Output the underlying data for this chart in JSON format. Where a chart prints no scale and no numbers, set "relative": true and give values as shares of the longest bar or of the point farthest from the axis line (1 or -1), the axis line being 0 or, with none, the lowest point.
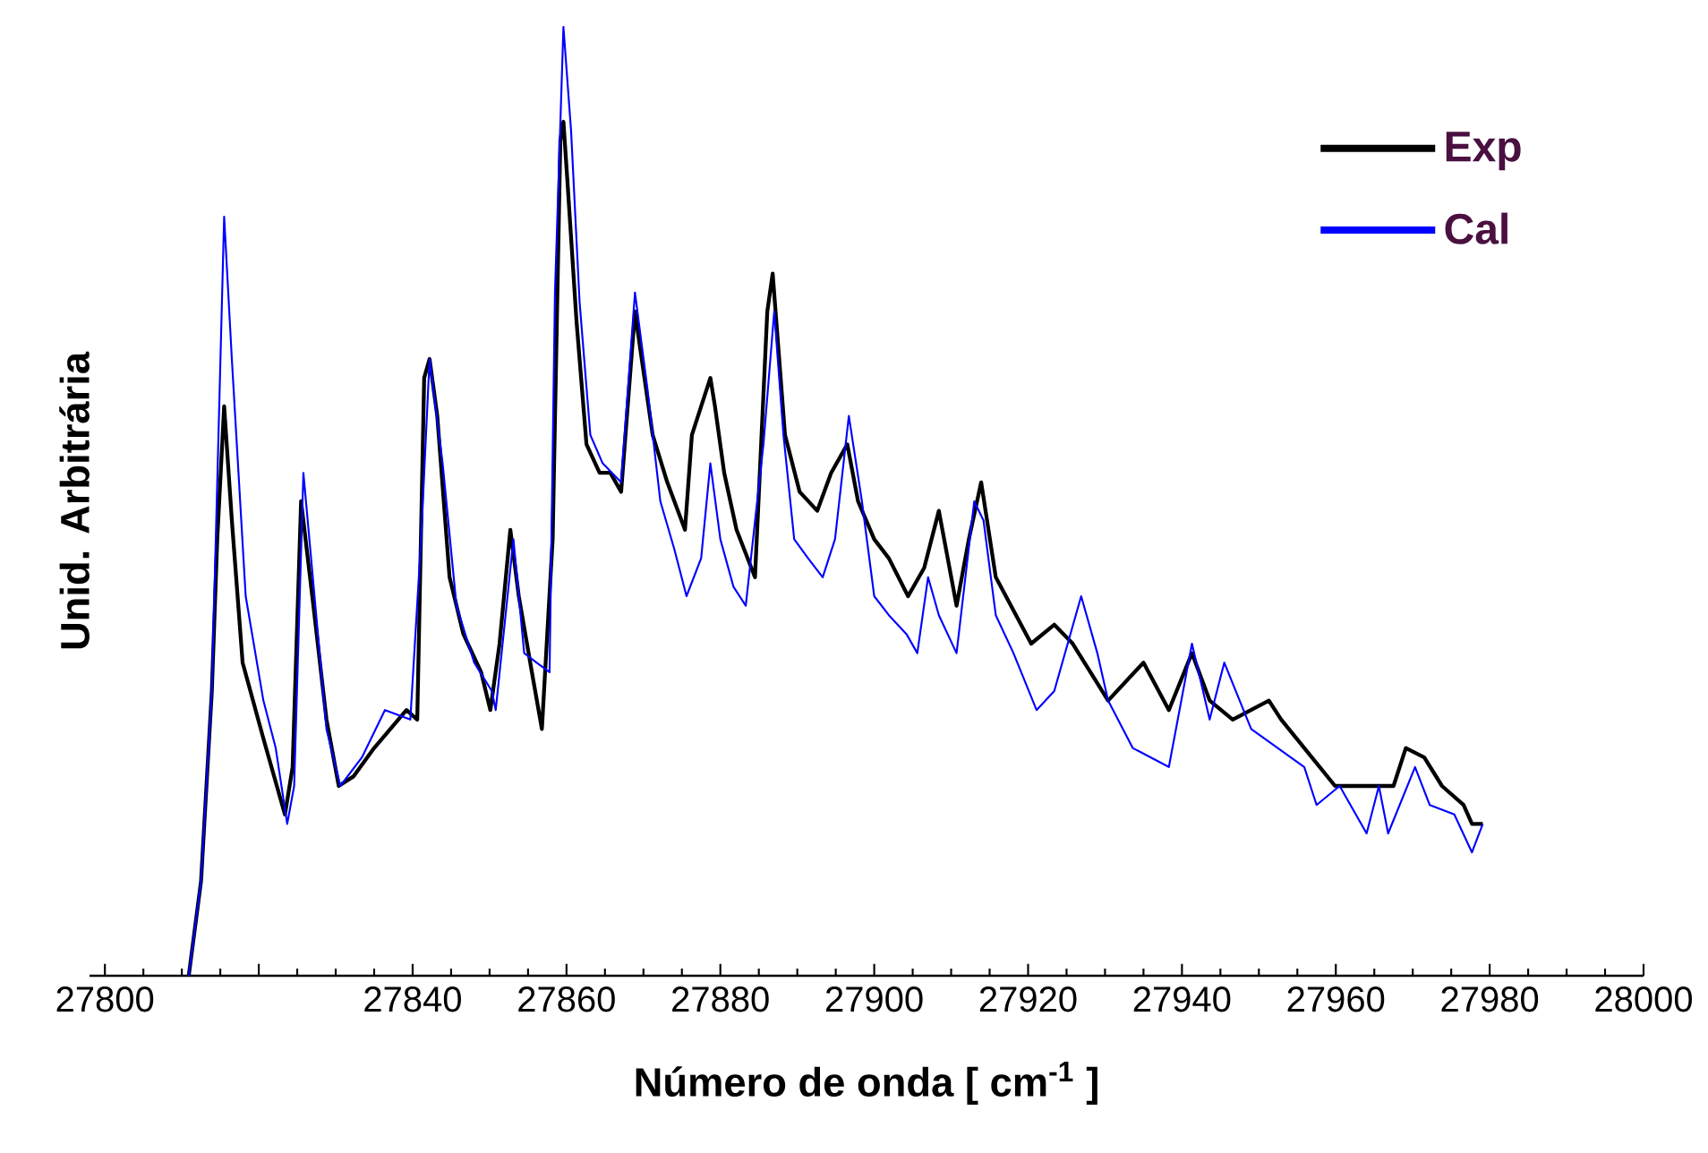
{
  "chart_data": {
    "type": "line",
    "relative": true,
    "xlabel": "Número de onda  [ cm$^{-1}$ ]",
    "ylabel": "Unid. Arbitrária",
    "xlim": [
      27798,
      28000
    ],
    "xticks": [
      27800,
      {
        "value": 27820,
        "label": null
      },
      27840,
      27860,
      27880,
      27900,
      27920,
      27940,
      27960,
      27980,
      28000
    ],
    "legend": "top right",
    "series": [
      {
        "name": "Exp",
        "color": "#000000",
        "x": [
          27810.9,
          27812.5,
          27813.9,
          27814.6,
          27815.5,
          27816.5,
          27817.9,
          27820.6,
          27823.4,
          27824.4,
          27825.5,
          27827.1,
          27828.8,
          27830.4,
          27832.3,
          27835.0,
          27839.2,
          27840.6,
          27841.5,
          27842.2,
          27843.2,
          27844.8,
          27846.6,
          27848.9,
          27850.1,
          27851.3,
          27852.7,
          27853.8,
          27855.5,
          27856.8,
          27858.2,
          27859.2,
          27859.6,
          27860.1,
          27861.3,
          27862.6,
          27864.3,
          27865.7,
          27867.1,
          27868.9,
          27869.6,
          27871.2,
          27873.1,
          27875.4,
          27876.3,
          27878.7,
          27879.3,
          27880.5,
          27882.1,
          27884.5,
          27886.1,
          27886.8,
          27888.4,
          27890.3,
          27892.6,
          27894.4,
          27896.5,
          27897.9,
          27900.0,
          27901.9,
          27904.4,
          27906.5,
          27908.4,
          27910.7,
          27912.3,
          27913.9,
          27915.8,
          27920.4,
          27923.4,
          27925.8,
          27930.4,
          27935.0,
          27938.3,
          27941.3,
          27943.6,
          27946.6,
          27951.3,
          27952.9,
          27955.9,
          27959.9,
          27967.5,
          27969.1,
          27971.5,
          27973.8,
          27976.6,
          27977.7,
          27979.1
        ],
        "values": [
          0,
          0.1,
          0.3,
          0.46,
          0.6,
          0.48,
          0.33,
          0.25,
          0.17,
          0.22,
          0.5,
          0.39,
          0.27,
          0.2,
          0.21,
          0.24,
          0.28,
          0.27,
          0.63,
          0.65,
          0.59,
          0.42,
          0.36,
          0.32,
          0.28,
          0.35,
          0.47,
          0.4,
          0.32,
          0.26,
          0.46,
          0.88,
          0.9,
          0.84,
          0.69,
          0.56,
          0.53,
          0.53,
          0.51,
          0.7,
          0.66,
          0.57,
          0.52,
          0.47,
          0.57,
          0.63,
          0.6,
          0.53,
          0.47,
          0.42,
          0.7,
          0.74,
          0.57,
          0.51,
          0.49,
          0.53,
          0.56,
          0.5,
          0.46,
          0.44,
          0.4,
          0.43,
          0.49,
          0.39,
          0.46,
          0.52,
          0.42,
          0.35,
          0.37,
          0.35,
          0.29,
          0.33,
          0.28,
          0.34,
          0.29,
          0.27,
          0.29,
          0.27,
          0.24,
          0.2,
          0.2,
          0.24,
          0.23,
          0.2,
          0.18,
          0.16,
          0.16
        ]
      },
      {
        "name": "Cal",
        "color": "#0000ff",
        "x": [
          27810.9,
          27812.5,
          27813.9,
          27815.5,
          27816.5,
          27818.3,
          27820.6,
          27822.2,
          27823.7,
          27824.6,
          27825.8,
          27828.8,
          27830.6,
          27833.4,
          27836.4,
          27839.7,
          27841.1,
          27842.2,
          27843.9,
          27845.7,
          27848.0,
          27850.3,
          27850.8,
          27853.1,
          27854.5,
          27856.1,
          27857.8,
          27858.5,
          27859.6,
          27860.6,
          27861.7,
          27863.1,
          27864.7,
          27867.1,
          27868.9,
          27870.5,
          27872.2,
          27874.0,
          27875.6,
          27877.5,
          27878.7,
          27880.0,
          27881.7,
          27883.3,
          27885.6,
          27887.0,
          27888.2,
          27889.6,
          27891.4,
          27893.3,
          27894.9,
          27896.7,
          27898.4,
          27900.0,
          27901.9,
          27904.2,
          27905.6,
          27907.0,
          27908.4,
          27910.7,
          27913.0,
          27914.2,
          27915.8,
          27918.1,
          27921.1,
          27923.4,
          27926.9,
          27929.0,
          27930.4,
          27933.6,
          27938.3,
          27941.3,
          27943.6,
          27945.5,
          27949.0,
          27955.9,
          27957.5,
          27960.5,
          27964.0,
          27965.6,
          27966.8,
          27970.3,
          27972.2,
          27975.4,
          27977.7,
          27979.1
        ],
        "values": [
          0,
          0.1,
          0.3,
          0.8,
          0.65,
          0.4,
          0.29,
          0.24,
          0.16,
          0.2,
          0.53,
          0.26,
          0.2,
          0.23,
          0.28,
          0.27,
          0.46,
          0.65,
          0.54,
          0.39,
          0.33,
          0.3,
          0.28,
          0.46,
          0.34,
          0.33,
          0.32,
          0.72,
          1.0,
          0.89,
          0.71,
          0.57,
          0.54,
          0.52,
          0.72,
          0.62,
          0.5,
          0.45,
          0.4,
          0.44,
          0.54,
          0.46,
          0.41,
          0.39,
          0.56,
          0.7,
          0.57,
          0.46,
          0.44,
          0.42,
          0.46,
          0.59,
          0.5,
          0.4,
          0.38,
          0.36,
          0.34,
          0.42,
          0.38,
          0.34,
          0.5,
          0.48,
          0.38,
          0.34,
          0.28,
          0.3,
          0.4,
          0.34,
          0.29,
          0.24,
          0.22,
          0.35,
          0.27,
          0.33,
          0.26,
          0.22,
          0.18,
          0.2,
          0.15,
          0.2,
          0.15,
          0.22,
          0.18,
          0.17,
          0.13,
          0.16
        ]
      }
    ]
  }
}
